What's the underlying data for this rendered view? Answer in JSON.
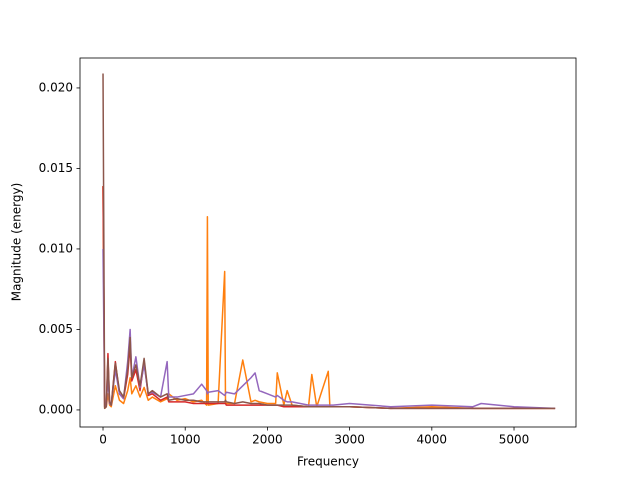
{
  "chart_data": {
    "type": "line",
    "xlabel": "Frequency",
    "ylabel": "Magnitude (energy)",
    "xlim": [
      -280,
      5754
    ],
    "ylim": [
      -0.00106,
      0.02186
    ],
    "xticks": [
      0,
      1000,
      2000,
      3000,
      4000,
      5000
    ],
    "yticks": [
      {
        "value": 0,
        "label": "0.000"
      },
      {
        "value": 0.005,
        "label": "0.005"
      },
      {
        "value": 0.01,
        "label": "0.010"
      },
      {
        "value": 0.015,
        "label": "0.015"
      },
      {
        "value": 0.02,
        "label": "0.020"
      }
    ],
    "x": [
      0,
      20,
      40,
      60,
      80,
      100,
      150,
      200,
      250,
      300,
      330,
      350,
      400,
      450,
      500,
      550,
      600,
      700,
      780,
      800,
      900,
      1000,
      1100,
      1200,
      1260,
      1270,
      1280,
      1400,
      1480,
      1490,
      1500,
      1600,
      1700,
      1800,
      1850,
      1900,
      2000,
      2100,
      2120,
      2200,
      2240,
      2300,
      2500,
      2540,
      2600,
      2740,
      2760,
      2800,
      3000,
      3500,
      4000,
      4500,
      4600,
      5000,
      5500
    ],
    "series": [
      {
        "color": "#ff7f0e",
        "values": [
          0.0139,
          0.0001,
          0.0002,
          0.001,
          0.0003,
          0.0002,
          0.0015,
          0.0006,
          0.0004,
          0.0012,
          0.002,
          0.001,
          0.0015,
          0.0008,
          0.0014,
          0.0006,
          0.0008,
          0.0005,
          0.0007,
          0.001,
          0.0006,
          0.0007,
          0.0005,
          0.0006,
          0.0003,
          0.012,
          0.0003,
          0.0004,
          0.0086,
          0.0004,
          0.0004,
          0.0004,
          0.0031,
          0.0005,
          0.0006,
          0.0005,
          0.0004,
          0.0004,
          0.0023,
          0.0003,
          0.0012,
          0.0003,
          0.0002,
          0.0022,
          0.0002,
          0.0024,
          0.0002,
          0.0002,
          0.0002,
          0.0001,
          0.0002,
          0.0001,
          0.0001,
          0.0001,
          0.0001
        ]
      },
      {
        "color": "#d62728",
        "values": [
          0.0139,
          0.0002,
          0.0003,
          0.0035,
          0.0004,
          0.0003,
          0.003,
          0.001,
          0.0007,
          0.0022,
          0.004,
          0.0018,
          0.0025,
          0.0012,
          0.003,
          0.0009,
          0.001,
          0.0006,
          0.0008,
          0.0005,
          0.0005,
          0.0005,
          0.0004,
          0.0004,
          0.0004,
          0.0004,
          0.0004,
          0.0004,
          0.0004,
          0.0004,
          0.0003,
          0.0003,
          0.0003,
          0.0003,
          0.0003,
          0.0003,
          0.0003,
          0.0003,
          0.0003,
          0.0002,
          0.0002,
          0.0002,
          0.0002,
          0.0002,
          0.0002,
          0.0002,
          0.0002,
          0.0002,
          0.0002,
          0.0001,
          0.0001,
          0.0001,
          0.0001,
          0.0001,
          0.0001
        ]
      },
      {
        "color": "#9467bd",
        "values": [
          0.01,
          0.0002,
          0.0003,
          0.002,
          0.0004,
          0.0003,
          0.0025,
          0.001,
          0.0007,
          0.003,
          0.005,
          0.002,
          0.0033,
          0.0014,
          0.0028,
          0.001,
          0.0011,
          0.0008,
          0.003,
          0.0008,
          0.0008,
          0.0009,
          0.001,
          0.0016,
          0.0012,
          0.001,
          0.0011,
          0.0012,
          0.0009,
          0.001,
          0.0011,
          0.001,
          0.0015,
          0.002,
          0.0023,
          0.0012,
          0.001,
          0.0008,
          0.0009,
          0.0006,
          0.0005,
          0.0005,
          0.0003,
          0.0003,
          0.0003,
          0.0003,
          0.0003,
          0.0003,
          0.0004,
          0.0002,
          0.0003,
          0.0002,
          0.0004,
          0.0002,
          0.0001
        ]
      },
      {
        "color": "#8c564b",
        "values": [
          0.0209,
          0.0001,
          0.0002,
          0.0032,
          0.0005,
          0.0003,
          0.0029,
          0.0012,
          0.0008,
          0.0025,
          0.0045,
          0.002,
          0.0028,
          0.0015,
          0.0032,
          0.001,
          0.0012,
          0.0008,
          0.001,
          0.0006,
          0.0007,
          0.0006,
          0.0006,
          0.0005,
          0.0005,
          0.0005,
          0.0005,
          0.0005,
          0.0005,
          0.0006,
          0.0005,
          0.0004,
          0.0005,
          0.0004,
          0.0004,
          0.0004,
          0.0003,
          0.0003,
          0.0003,
          0.0003,
          0.0003,
          0.0003,
          0.0002,
          0.0002,
          0.0002,
          0.0002,
          0.0002,
          0.0002,
          0.0002,
          0.0001,
          0.0001,
          0.0001,
          0.0001,
          0.0001,
          0.0001
        ]
      }
    ]
  }
}
